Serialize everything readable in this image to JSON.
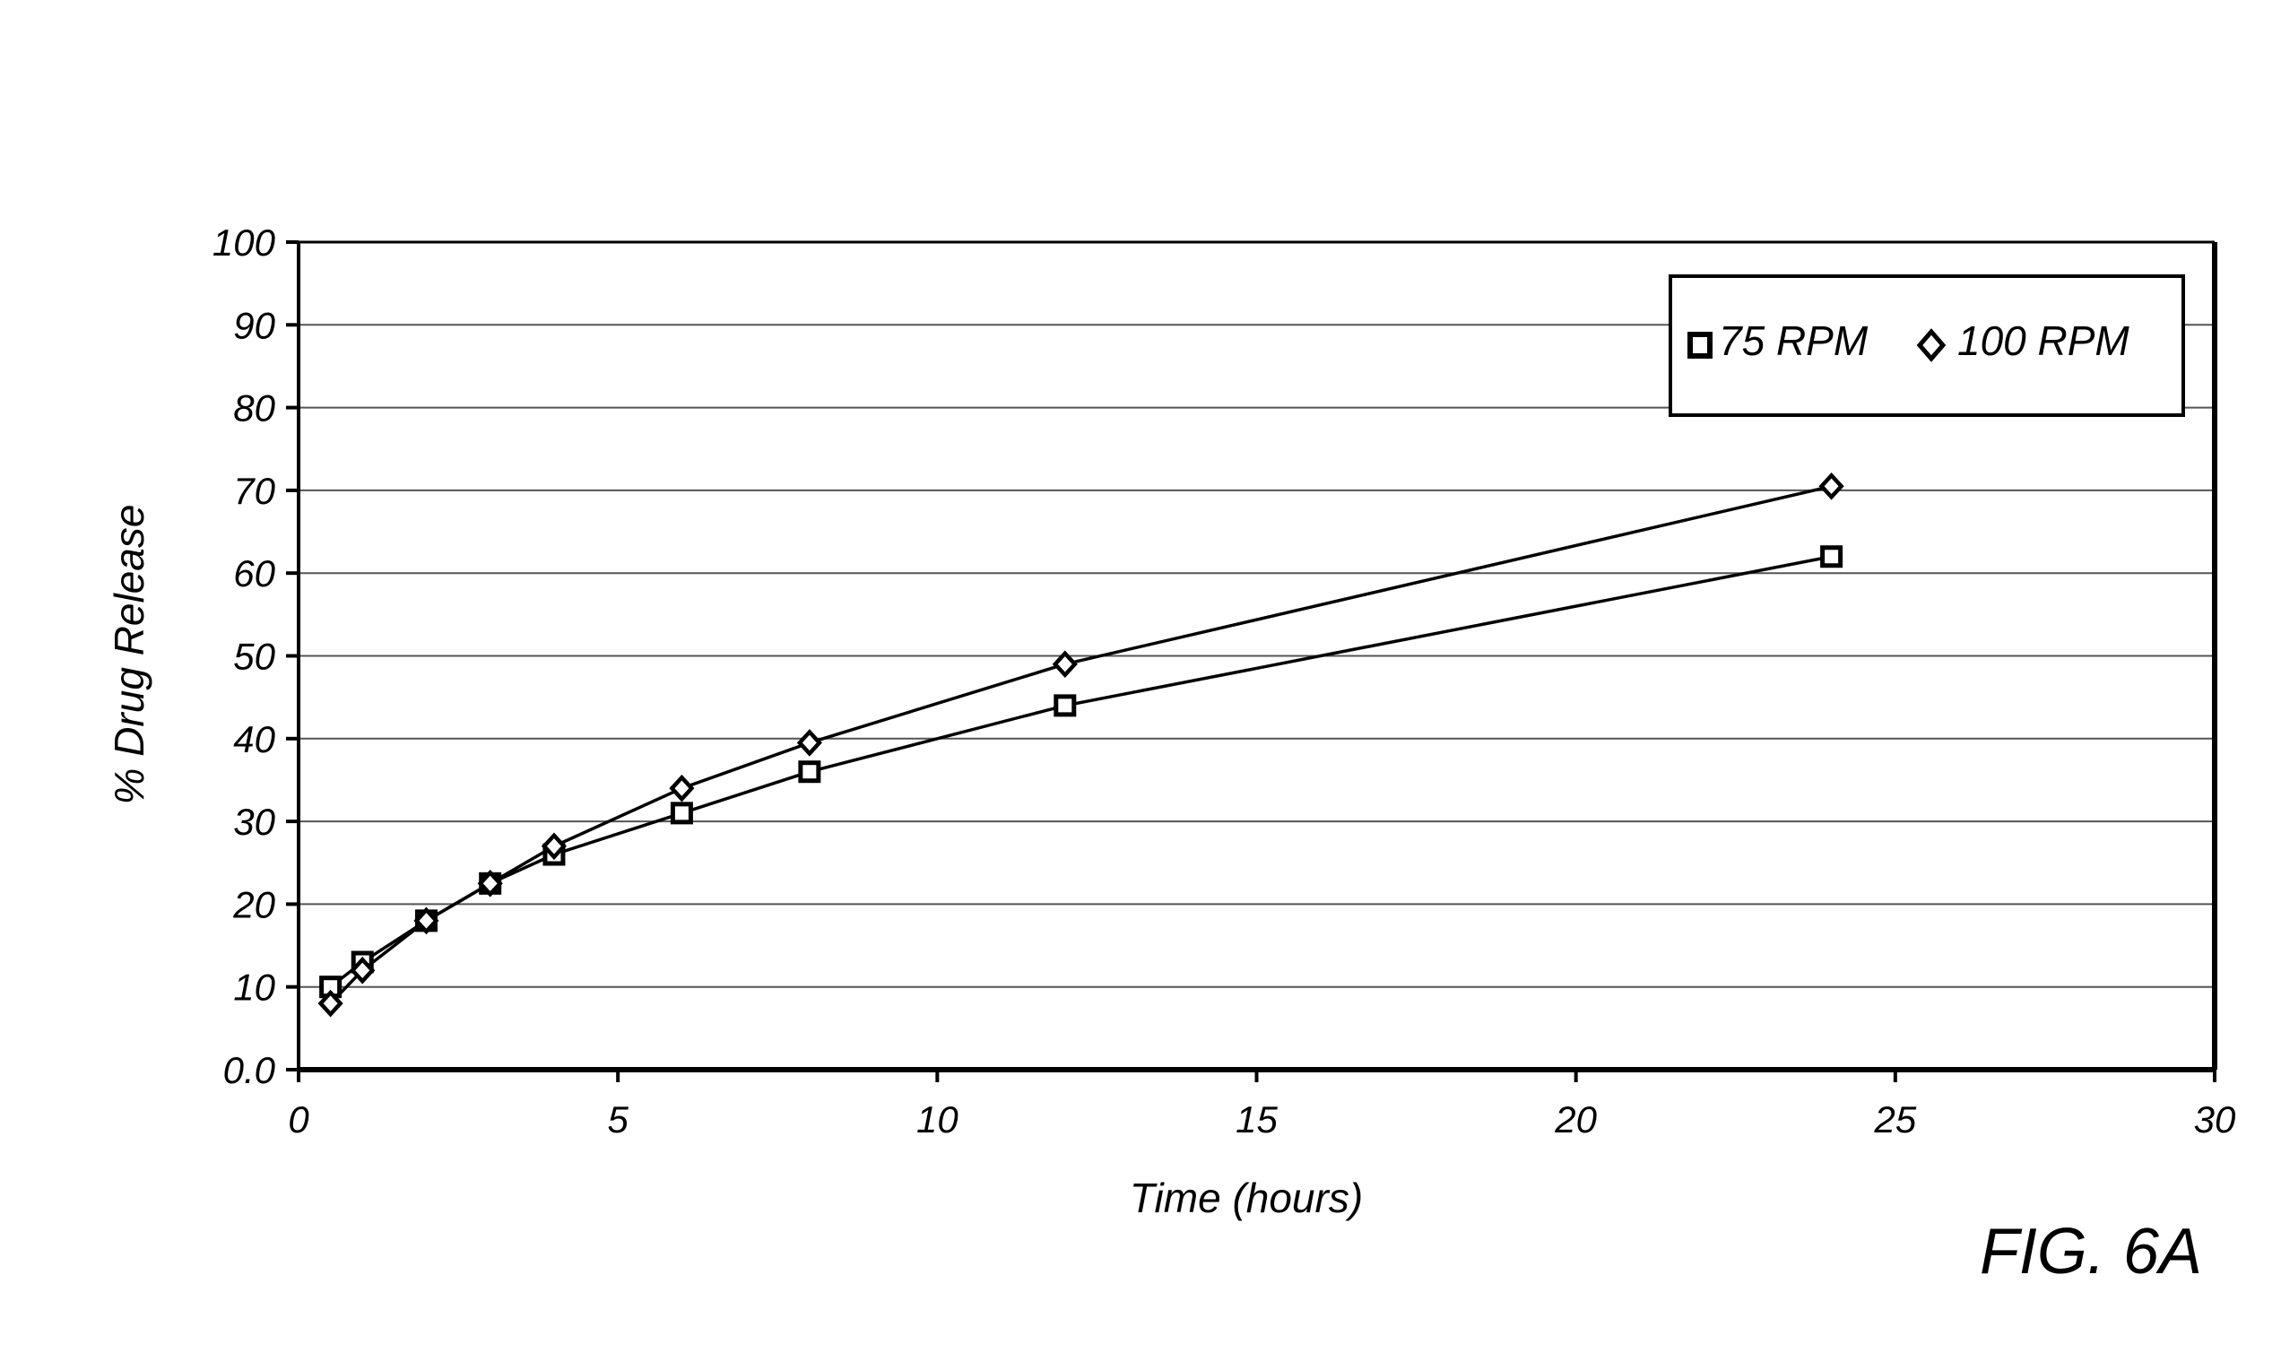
{
  "figure_label": "FIG. 6A",
  "chart_data": {
    "type": "line",
    "title": "",
    "xlabel": "Time (hours)",
    "ylabel": "% Drug Release",
    "xlim": [
      0,
      30
    ],
    "ylim": [
      0,
      100
    ],
    "x_ticks": [
      "0",
      "5",
      "10",
      "15",
      "20",
      "25",
      "30"
    ],
    "y_ticks": [
      "0.0",
      "10",
      "20",
      "30",
      "40",
      "50",
      "60",
      "70",
      "80",
      "90",
      "100"
    ],
    "grid": "horizontal",
    "legend_position": "top-right",
    "series": [
      {
        "name": "75 RPM",
        "marker": "square",
        "x": [
          0.5,
          1,
          2,
          3,
          4,
          6,
          8,
          12,
          24
        ],
        "y": [
          10,
          13,
          18,
          22.5,
          26,
          31,
          36,
          44,
          62
        ]
      },
      {
        "name": "100 RPM",
        "marker": "diamond",
        "x": [
          0.5,
          1,
          2,
          3,
          4,
          6,
          8,
          12,
          24
        ],
        "y": [
          8,
          12,
          18,
          22.5,
          27,
          34,
          39.5,
          49,
          70.5
        ]
      }
    ]
  }
}
